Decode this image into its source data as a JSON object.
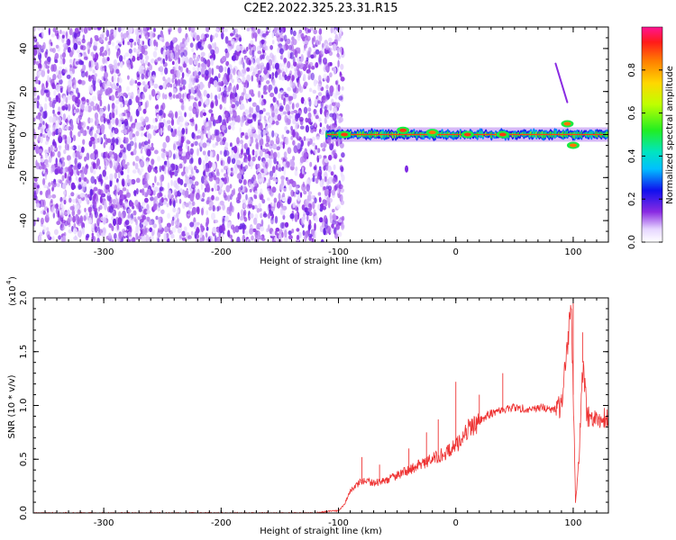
{
  "title": "C2E2.2022.325.23.31.R15",
  "colorbar": {
    "label": "Normalized spectral amplitude",
    "ticks": [
      "0.0",
      "0.2",
      "0.4",
      "0.6",
      "0.8"
    ]
  },
  "chart_data": [
    {
      "type": "heatmap",
      "xlabel": "Height of straight line (km)",
      "ylabel": "Frequency (Hz)",
      "xlim": [
        -360,
        130
      ],
      "ylim": [
        -50,
        50
      ],
      "xticks": [
        "-300",
        "-200",
        "-100",
        "0",
        "100"
      ],
      "yticks": [
        "-40",
        "-20",
        "0",
        "20",
        "40"
      ],
      "noise_region_x": [
        -360,
        -100
      ],
      "signal_line": {
        "x_range": [
          -110,
          130
        ],
        "frequency": 0,
        "peaks": [
          {
            "x": -95,
            "freq": 0,
            "amplitude": 0.9
          },
          {
            "x": -45,
            "freq": 2,
            "amplitude": 0.9
          },
          {
            "x": -20,
            "freq": 1,
            "amplitude": 0.85
          },
          {
            "x": 10,
            "freq": 0,
            "amplitude": 0.9
          },
          {
            "x": 40,
            "freq": 0,
            "amplitude": 0.9
          },
          {
            "x": 95,
            "freq": 5,
            "amplitude": 0.85
          },
          {
            "x": 100,
            "freq": -5,
            "amplitude": 0.85
          }
        ],
        "features": [
          {
            "x_range": [
              85,
              95
            ],
            "freq_range": [
              33,
              15
            ],
            "note": "faint trace"
          },
          {
            "x": -42,
            "freq": -16,
            "note": "isolated blob"
          }
        ]
      }
    },
    {
      "type": "line",
      "xlabel": "Height of straight line (km)",
      "ylabel": "SNR (10 * v/v)",
      "yscale_label": "(x10",
      "yscale_exponent": "4",
      "xlim": [
        -360,
        130
      ],
      "ylim": [
        0,
        2.0
      ],
      "xticks": [
        "-300",
        "-200",
        "-100",
        "0",
        "100"
      ],
      "yticks": [
        "0.0",
        "0.5",
        "1.0",
        "1.5",
        "2.0"
      ],
      "color": "#ee3333",
      "x": [
        -360,
        -300,
        -200,
        -120,
        -105,
        -100,
        -95,
        -90,
        -80,
        -70,
        -60,
        -50,
        -40,
        -30,
        -20,
        -10,
        0,
        10,
        20,
        30,
        40,
        50,
        60,
        70,
        80,
        88,
        92,
        95,
        98,
        100,
        102,
        105,
        108,
        112,
        120,
        130
      ],
      "y": [
        0.0,
        0.0,
        0.0,
        0.0,
        0.02,
        0.02,
        0.08,
        0.2,
        0.3,
        0.28,
        0.3,
        0.35,
        0.4,
        0.45,
        0.5,
        0.55,
        0.62,
        0.78,
        0.85,
        0.93,
        0.96,
        0.98,
        0.97,
        0.98,
        0.97,
        0.97,
        1.2,
        1.55,
        2.0,
        1.1,
        0.1,
        0.5,
        1.4,
        0.9,
        0.88,
        0.88
      ],
      "spikes": [
        {
          "x": -80,
          "y": 0.52
        },
        {
          "x": -65,
          "y": 0.45
        },
        {
          "x": -40,
          "y": 0.6
        },
        {
          "x": -25,
          "y": 0.75
        },
        {
          "x": -15,
          "y": 0.87
        },
        {
          "x": 0,
          "y": 1.22
        },
        {
          "x": 20,
          "y": 1.1
        },
        {
          "x": 40,
          "y": 1.3
        },
        {
          "x": 100,
          "y": 2.0
        },
        {
          "x": 108,
          "y": 1.68
        }
      ]
    }
  ]
}
